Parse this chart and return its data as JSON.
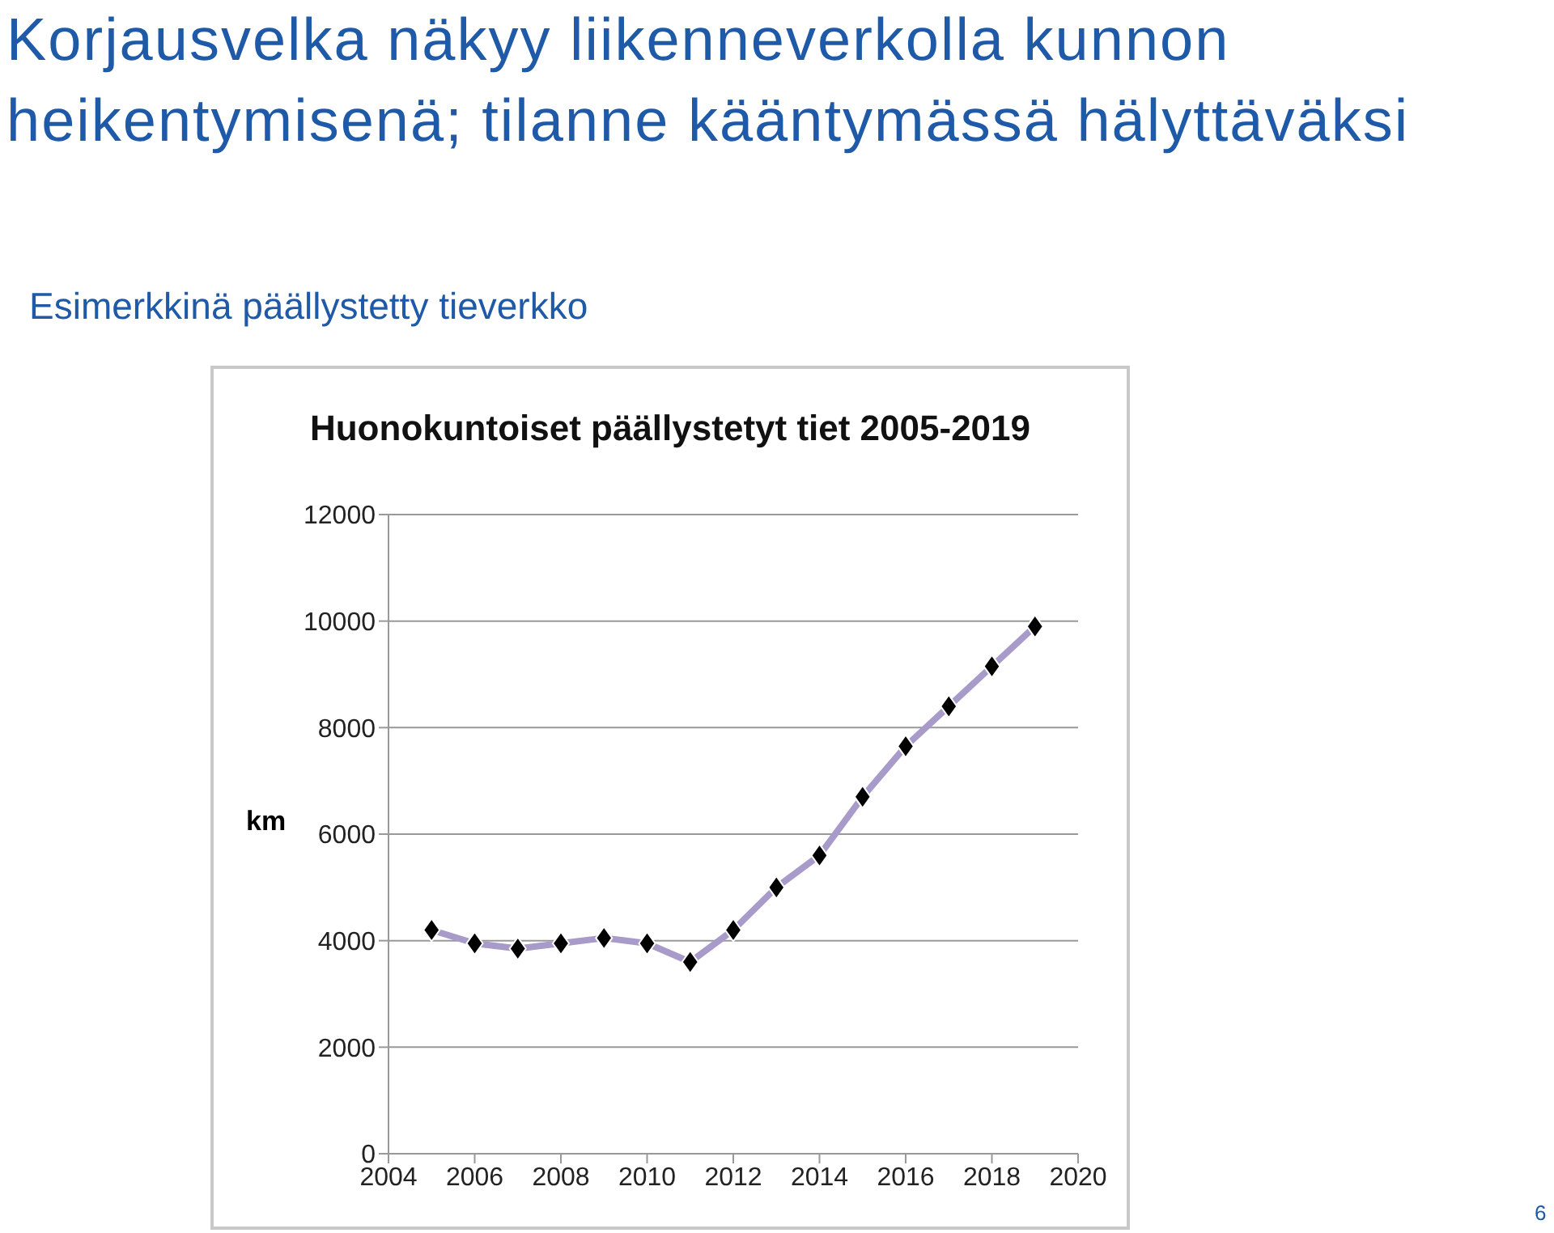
{
  "chart_data": {
    "type": "line",
    "title": "Korjausvelka näkyy liikenneverkolla kunnon heikentymisenä; tilanne kääntymässä hälyttäväksi",
    "subtitle": "Esimerkkinä päällystetty tieverkko",
    "ylabel": "km",
    "annotations": [
      "Huonokuntoiset päällystetyt tiet 2005-2019",
      "6"
    ],
    "x": [
      2005,
      2006,
      2007,
      2008,
      2009,
      2010,
      2011,
      2012,
      2013,
      2014,
      2015,
      2016,
      2017,
      2018,
      2019
    ],
    "series": [
      {
        "color": "#a99bc9",
        "values": [
          4200,
          3950,
          3850,
          3950,
          4050,
          3950,
          3600,
          4200,
          5000,
          5600,
          6700,
          7650,
          8400,
          9150,
          9900
        ]
      }
    ],
    "xlim": [
      2004,
      2020
    ],
    "xticks": [
      2004,
      2006,
      2008,
      2010,
      2012,
      2014,
      2016,
      2018,
      2020
    ],
    "ylim": [
      0,
      12000
    ],
    "yticks": [
      0,
      2000,
      4000,
      6000,
      8000,
      10000,
      12000
    ],
    "grid": "y",
    "legend": false,
    "marker": "diamond",
    "line_style": "solid"
  }
}
